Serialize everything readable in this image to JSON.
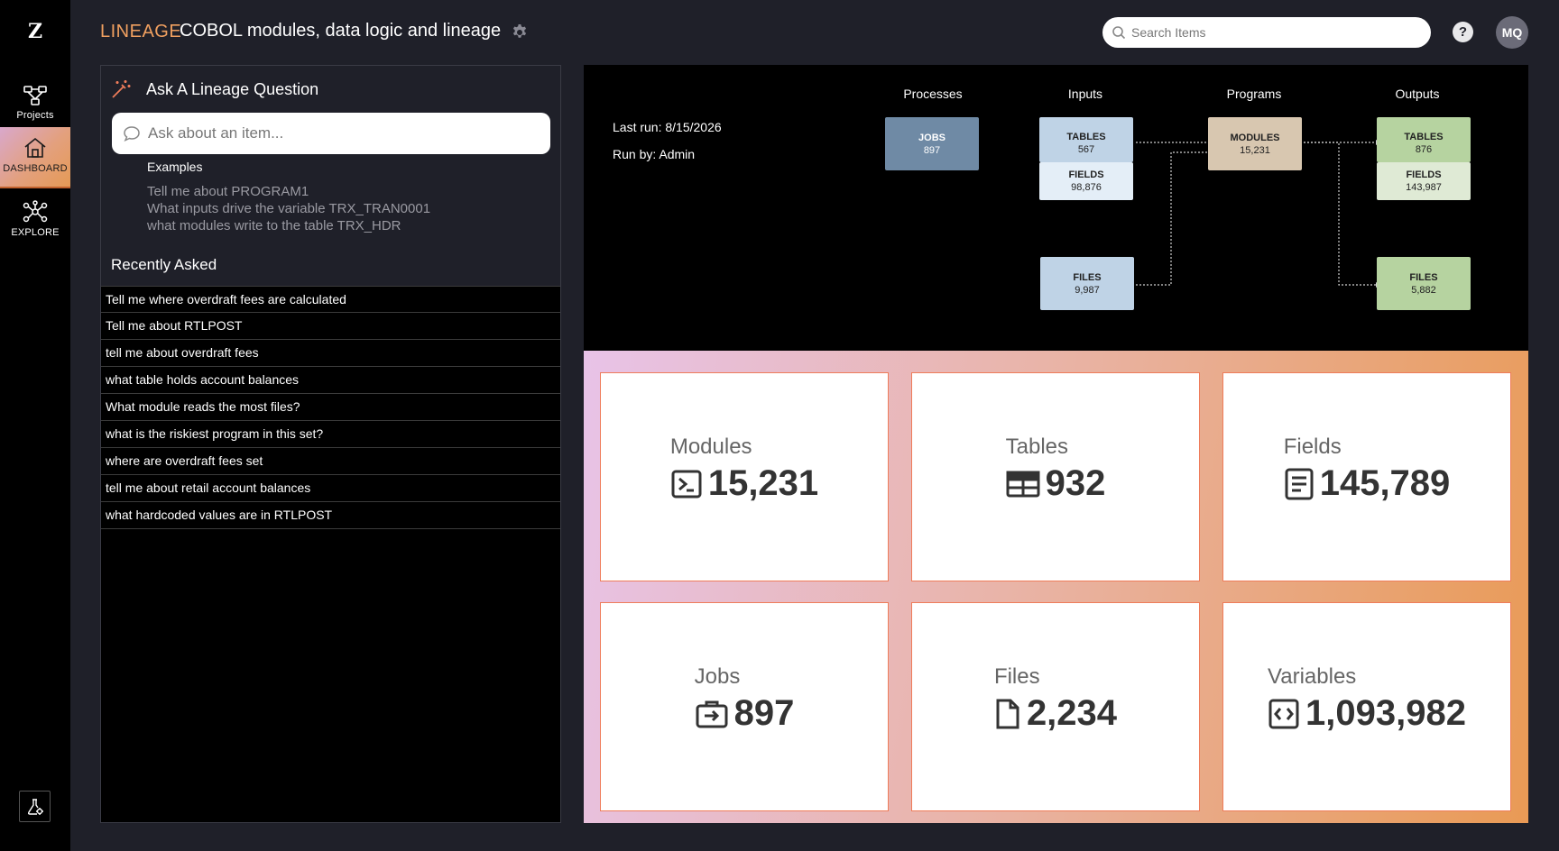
{
  "rail": {
    "logo": "Z",
    "items": [
      {
        "label": "Projects",
        "icon": "projects-icon"
      },
      {
        "label": "DASHBOARD",
        "icon": "home-icon"
      },
      {
        "label": "EXPLORE",
        "icon": "network-icon"
      }
    ],
    "bottom_icon": "lab-settings-icon"
  },
  "header": {
    "brand": "LINEAGE",
    "title": "COBOL modules, data logic and lineage",
    "search_placeholder": "Search Items",
    "help": "?",
    "avatar": "MQ"
  },
  "ask": {
    "title": "Ask A Lineage Question",
    "placeholder": "Ask about an item...",
    "examples_title": "Examples",
    "examples": [
      "Tell me about PROGRAM1",
      "What inputs drive the variable TRX_TRAN0001",
      "what modules write to the table TRX_HDR"
    ],
    "recent_title": "Recently Asked",
    "recent": [
      "Tell me where overdraft fees are calculated",
      "Tell me about RTLPOST",
      "tell me about overdraft fees",
      "what table holds account balances",
      "What module reads the most files?",
      "what is the riskiest program in this set?",
      "where are overdraft fees set",
      "tell me about retail account balances",
      "what hardcoded values are in RTLPOST"
    ]
  },
  "diagram": {
    "columns": [
      "Processes",
      "Inputs",
      "Programs",
      "Outputs"
    ],
    "last_run": "Last run: 8/15/2026",
    "run_by": "Run by: Admin",
    "nodes": {
      "jobs": {
        "title": "JOBS",
        "value": "897"
      },
      "in_tables": {
        "title": "TABLES",
        "value": "567"
      },
      "in_fields": {
        "title": "FIELDS",
        "value": "98,876"
      },
      "in_files": {
        "title": "FILES",
        "value": "9,987"
      },
      "modules": {
        "title": "MODULES",
        "value": "15,231"
      },
      "out_tables": {
        "title": "TABLES",
        "value": "876"
      },
      "out_fields": {
        "title": "FIELDS",
        "value": "143,987"
      },
      "out_files": {
        "title": "FILES",
        "value": "5,882"
      }
    },
    "colors": {
      "jobs": "#6f8aa5",
      "inputs": "#bfd3e6",
      "inputs_light": "#e4eef7",
      "modules": "#d8c7b0",
      "outputs": "#b6d3a0",
      "outputs_light": "#dfead5"
    }
  },
  "stats": [
    {
      "name": "Modules",
      "value": "15,231",
      "icon": "terminal-icon"
    },
    {
      "name": "Tables",
      "value": "932",
      "icon": "table-icon"
    },
    {
      "name": "Fields",
      "value": "145,789",
      "icon": "document-icon"
    },
    {
      "name": "Jobs",
      "value": "897",
      "icon": "briefcase-icon"
    },
    {
      "name": "Files",
      "value": "2,234",
      "icon": "file-icon"
    },
    {
      "name": "Variables",
      "value": "1,093,982",
      "icon": "code-icon"
    }
  ]
}
